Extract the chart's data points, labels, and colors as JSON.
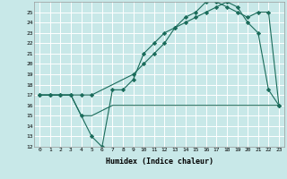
{
  "xlabel": "Humidex (Indice chaleur)",
  "xlim": [
    -0.5,
    23.5
  ],
  "ylim": [
    12,
    26
  ],
  "yticks": [
    12,
    13,
    14,
    15,
    16,
    17,
    18,
    19,
    20,
    21,
    22,
    23,
    24,
    25
  ],
  "xticks": [
    0,
    1,
    2,
    3,
    4,
    5,
    6,
    7,
    8,
    9,
    10,
    11,
    12,
    13,
    14,
    15,
    16,
    17,
    18,
    19,
    20,
    21,
    22,
    23
  ],
  "bg_color": "#c8e8e8",
  "grid_color": "#ffffff",
  "line_color": "#1a6b5a",
  "line1_x": [
    0,
    1,
    2,
    3,
    4,
    5,
    6,
    7,
    8,
    9,
    10,
    11,
    12,
    13,
    14,
    15,
    16,
    17,
    18,
    19,
    20,
    21,
    22,
    23
  ],
  "line1_y": [
    17,
    17,
    17,
    17,
    15,
    13,
    12,
    17.5,
    17.5,
    18.5,
    21,
    22,
    23,
    23.5,
    24,
    24.5,
    25,
    25.5,
    26,
    25.5,
    24,
    23,
    17.5,
    16
  ],
  "line2_x": [
    0,
    1,
    2,
    3,
    4,
    5,
    6,
    7,
    8,
    9,
    10,
    11,
    12,
    13,
    14,
    15,
    16,
    17,
    18,
    19,
    20,
    21,
    22,
    23
  ],
  "line2_y": [
    17,
    17,
    17,
    17,
    15,
    15,
    15.5,
    16,
    16,
    16,
    16,
    16,
    16,
    16,
    16,
    16,
    16,
    16,
    16,
    16,
    16,
    16,
    16,
    16
  ],
  "line3_x": [
    0,
    1,
    2,
    3,
    4,
    5,
    9,
    10,
    11,
    12,
    13,
    14,
    15,
    16,
    17,
    18,
    19,
    20,
    21,
    22,
    23
  ],
  "line3_y": [
    17,
    17,
    17,
    17,
    17,
    17,
    19,
    20,
    21,
    22,
    23.5,
    24.5,
    25,
    26,
    26,
    25.5,
    25,
    24.5,
    25,
    25,
    16
  ]
}
